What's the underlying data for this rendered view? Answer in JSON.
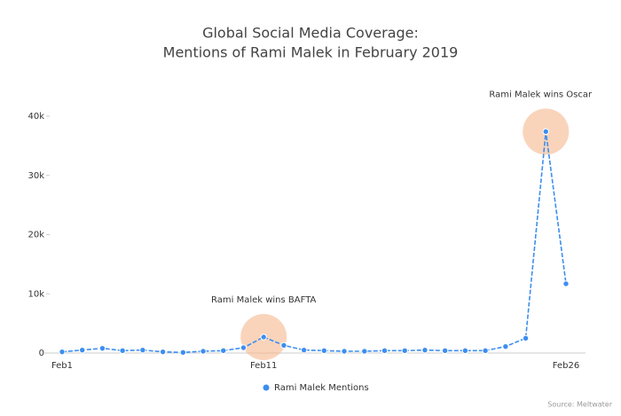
{
  "chart_data": {
    "type": "line",
    "title": [
      "Global Social Media Coverage:",
      "Mentions of Rami Malek in February 2019"
    ],
    "categories": [
      "Feb1",
      null,
      null,
      null,
      null,
      null,
      null,
      null,
      null,
      null,
      "Feb11",
      null,
      null,
      null,
      null,
      null,
      null,
      null,
      null,
      null,
      null,
      null,
      null,
      null,
      null,
      "Feb26"
    ],
    "series": [
      {
        "name": "Rami Malek Mentions",
        "color": "#3d8ef0",
        "values": [
          200,
          500,
          800,
          400,
          500,
          200,
          100,
          300,
          400,
          900,
          2700,
          1300,
          500,
          400,
          300,
          300,
          400,
          400,
          500,
          400,
          400,
          400,
          1100,
          2500,
          37400,
          11700
        ]
      }
    ],
    "ylim": [
      0,
      40000
    ],
    "yticks": [
      0,
      {
        "value": 10000,
        "label": "10k"
      },
      {
        "value": 20000,
        "label": "20k"
      },
      {
        "value": 30000,
        "label": "30k"
      },
      {
        "value": 40000,
        "label": "40k"
      }
    ],
    "annotations": [
      "Rami Malek wins BAFTA",
      "Rami Malek wins Oscar"
    ],
    "source": "Source: Meltwater",
    "grid": false,
    "legend": "bottom"
  }
}
